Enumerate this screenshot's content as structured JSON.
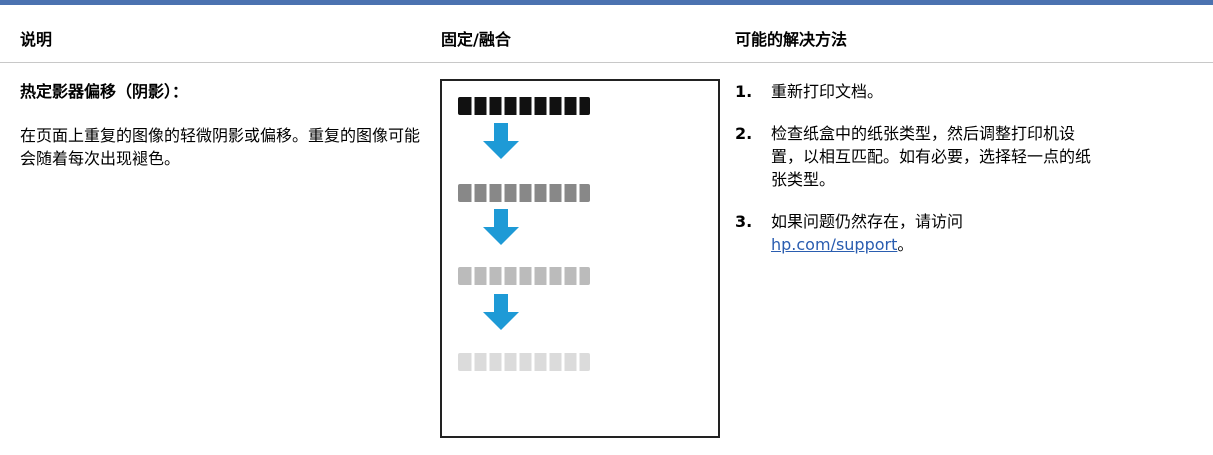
{
  "header": {
    "columns": [
      "说明",
      "固定/融合",
      "可能的解决方法"
    ]
  },
  "row": {
    "title": "热定影器偏移（阴影）：",
    "description": "在页面上重复的图像的轻微阴影或偏移。重复的图像可能会随着每次出现褪色。",
    "steps": [
      {
        "number": "1.",
        "text": "重新打印文档。"
      },
      {
        "number": "2.",
        "text": "检查纸盒中的纸张类型，然后调整打印机设置，以相互匹配。如有必要，选择轻一点的纸张类型。"
      },
      {
        "number": "3.",
        "text": "如果问题仍然存在，请访问 ",
        "link": "hp.com/support",
        "after": "。"
      }
    ]
  }
}
